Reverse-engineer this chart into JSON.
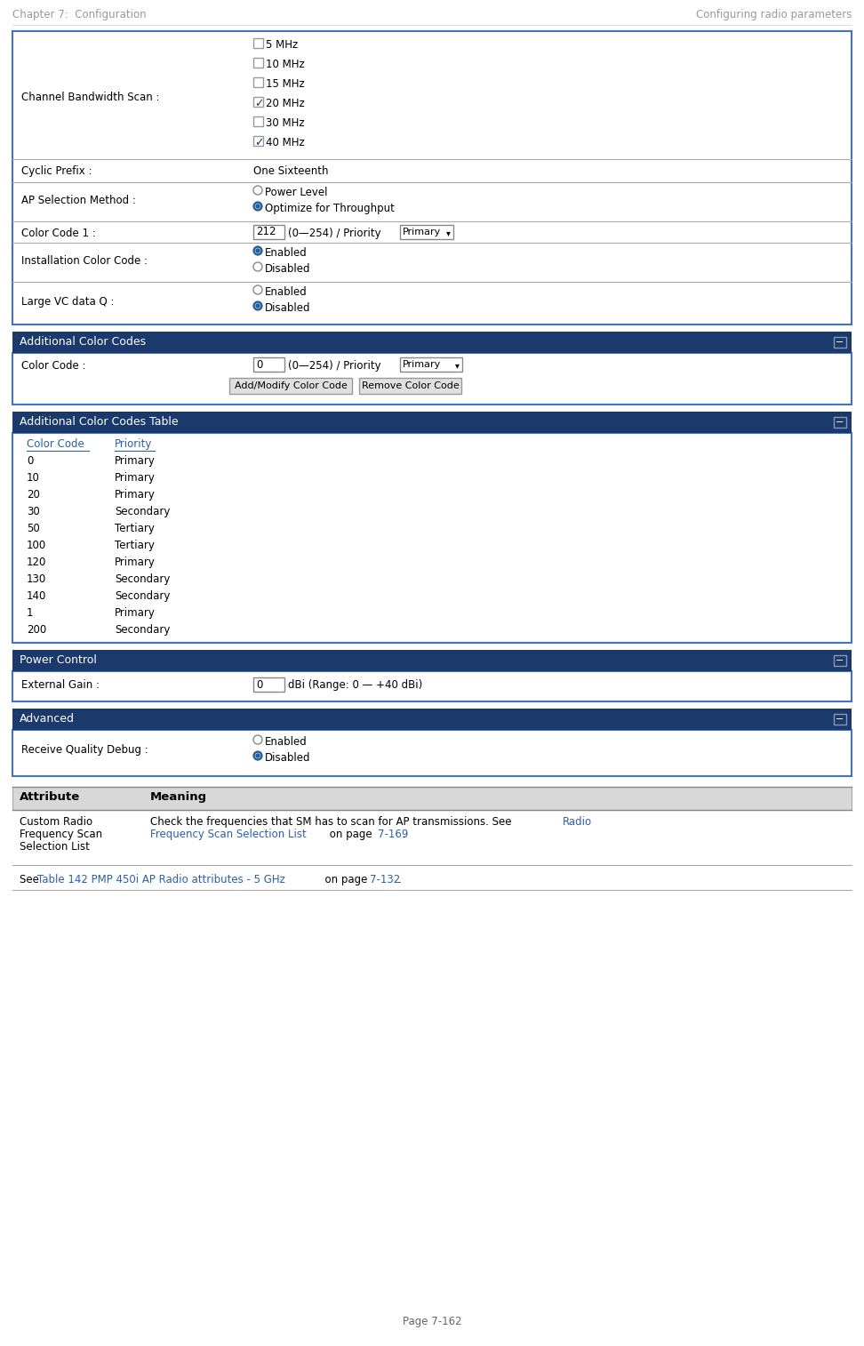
{
  "header_left": "Chapter 7:  Configuration",
  "header_right": "Configuring radio parameters",
  "page_number": "Page 7-162",
  "header_color": "#999999",
  "dark_blue": "#1b3a6b",
  "link_blue": "#2d5fa6",
  "border_color": "#4472c4",
  "bg_color": "#ffffff",
  "outer_bg": "#e8e8e8",
  "channel_bw_label": "Channel Bandwidth Scan :",
  "channel_bw_options": [
    {
      "label": "5 MHz",
      "checked": false
    },
    {
      "label": "10 MHz",
      "checked": false
    },
    {
      "label": "15 MHz",
      "checked": false
    },
    {
      "label": "20 MHz",
      "checked": true
    },
    {
      "label": "30 MHz",
      "checked": false
    },
    {
      "label": "40 MHz",
      "checked": true
    }
  ],
  "cyclic_prefix_label": "Cyclic Prefix :",
  "cyclic_prefix_value": "One Sixteenth",
  "ap_selection_label": "AP Selection Method :",
  "ap_selection_options": [
    {
      "label": "Power Level",
      "selected": false
    },
    {
      "label": "Optimize for Throughput",
      "selected": true
    }
  ],
  "color_code1_label": "Color Code 1 :",
  "color_code1_value": "212   (0—254) / Priority",
  "color_code1_dropdown": "Primary ▾",
  "installation_color_label": "Installation Color Code :",
  "installation_color_options": [
    {
      "label": "Enabled",
      "selected": true
    },
    {
      "label": "Disabled",
      "selected": false
    }
  ],
  "large_vc_label": "Large VC data Q :",
  "large_vc_options": [
    {
      "label": "Enabled",
      "selected": false
    },
    {
      "label": "Disabled",
      "selected": true
    }
  ],
  "additional_cc_title": "Additional Color Codes",
  "color_code_label": "Color Code :",
  "color_code_val": "0",
  "color_code_range": "(0—254) / Priority",
  "color_code_dropdown": "Primary    ▾",
  "add_modify_btn": "Add/Modify Color Code",
  "remove_btn": "Remove Color Code",
  "additional_cc_table_title": "Additional Color Codes Table",
  "table_col1": "Color Code",
  "table_col2": "Priority",
  "table_rows": [
    [
      "0",
      "Primary"
    ],
    [
      "10",
      "Primary"
    ],
    [
      "20",
      "Primary"
    ],
    [
      "30",
      "Secondary"
    ],
    [
      "50",
      "Tertiary"
    ],
    [
      "100",
      "Tertiary"
    ],
    [
      "120",
      "Primary"
    ],
    [
      "130",
      "Secondary"
    ],
    [
      "140",
      "Secondary"
    ],
    [
      "1",
      "Primary"
    ],
    [
      "200",
      "Secondary"
    ]
  ],
  "power_control_title": "Power Control",
  "external_gain_label": "External Gain :",
  "external_gain_val": "0",
  "external_gain_unit": "dBi (Range: 0 — +40 dBi)",
  "advanced_title": "Advanced",
  "receive_quality_label": "Receive Quality Debug :",
  "receive_quality_options": [
    {
      "label": "Enabled",
      "selected": false
    },
    {
      "label": "Disabled",
      "selected": true
    }
  ],
  "attr_header1": "Attribute",
  "attr_header2": "Meaning",
  "attr_label_line1": "Custom Radio",
  "attr_label_line2": "Frequency Scan",
  "attr_label_line3": "Selection List",
  "attr_meaning_line1": "Check the frequencies that SM has to scan for AP transmissions. See Radio",
  "attr_meaning_line2_link": "Frequency Scan Selection List",
  "attr_meaning_line2_rest": " on page ",
  "attr_meaning_link2": "7-169",
  "attr_meaning_end": ".",
  "see_plain": "See ",
  "see_link": "Table 142 PMP 450i AP Radio attributes - 5 GHz",
  "see_mid": "  on page ",
  "see_page": "7-132",
  "see_end": "."
}
